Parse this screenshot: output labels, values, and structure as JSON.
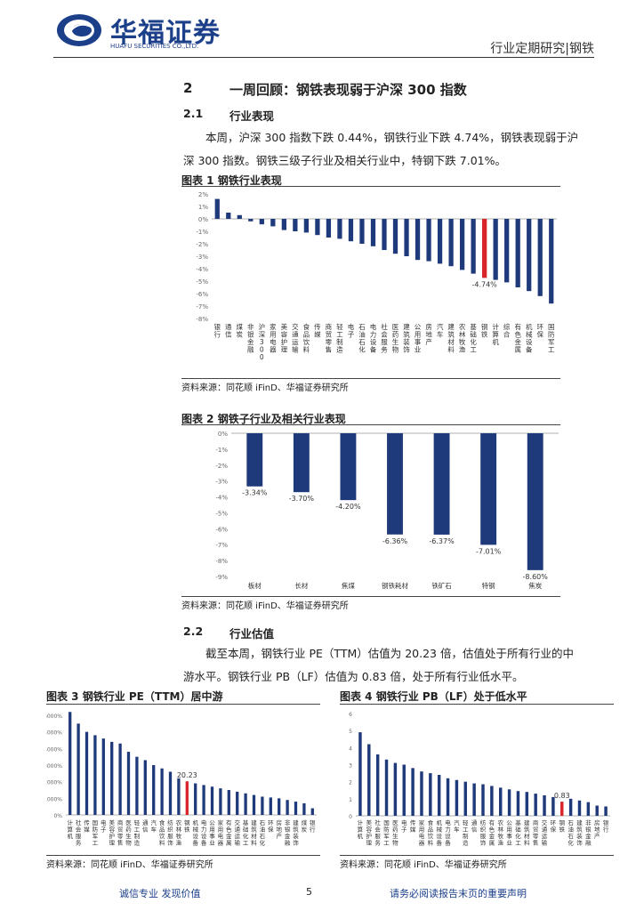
{
  "header": {
    "logo_cn": "华福证券",
    "logo_en": "HUAFU SECURITIES CO.,LTD.",
    "report_type": "行业定期研究|钢铁"
  },
  "section2": {
    "num": "2",
    "title": "一周回顾：钢铁表现弱于沪深 300 指数"
  },
  "section21": {
    "num": "2.1",
    "title": "行业表现",
    "para_line1": "本周，沪深 300 指数下跌 0.44%，钢铁行业下跌 4.74%，钢铁表现弱于沪",
    "para_line2": "深 300 指数。钢铁三级子行业及相关行业中，特钢下跌 7.01%。"
  },
  "fig1": {
    "title": "图表 1 钢铁行业表现",
    "source": "资料来源：同花顺 iFinD、华福证券研究所"
  },
  "fig2": {
    "title": "图表 2 钢铁子行业及相关行业表现",
    "source": "资料来源：同花顺 iFinD、华福证券研究所"
  },
  "section22": {
    "num": "2.2",
    "title": "行业估值",
    "para_line1": "截至本周，钢铁行业 PE（TTM）估值为 20.23 倍，估值处于所有行业的中",
    "para_line2": "游水平。钢铁行业 PB（LF）估值为 0.83 倍，处于所有行业低水平。"
  },
  "fig3": {
    "title": "图表 3 钢铁行业 PE（TTM）居中游",
    "source": "资料来源：同花顺 iFinD、华福证券研究所"
  },
  "fig4": {
    "title": "图表 4 钢铁行业 PB（LF）处于低水平",
    "source": "资料来源：同花顺 iFinD、华福证券研究所"
  },
  "footer": {
    "left": "诚信专业  发现价值",
    "page": "5",
    "right": "请务必阅读报告末页的重要声明"
  },
  "colors": {
    "navy": "#1f3a7a",
    "highlight": "#d9242a"
  },
  "chart_data": [
    {
      "id": "fig1",
      "type": "bar",
      "categories": [
        "银行",
        "通信",
        "煤炭",
        "非银金融",
        "沪深300",
        "家用电器",
        "美容护理",
        "交通运输",
        "食品饮料",
        "传媒",
        "商贸零售",
        "轻工制造",
        "电子",
        "石油石化",
        "电力设备",
        "社会服务",
        "医药生物",
        "建筑装饰",
        "公用事业",
        "房地产",
        "汽车",
        "建筑材料",
        "农林牧渔",
        "基础化工",
        "钢铁",
        "计算机",
        "综合",
        "有色金属",
        "机械设备",
        "环保",
        "国防军工"
      ],
      "values": [
        1.6,
        0.5,
        0.3,
        -0.2,
        -0.44,
        -0.6,
        -0.9,
        -1.0,
        -1.1,
        -1.3,
        -1.5,
        -1.6,
        -1.8,
        -2.0,
        -2.2,
        -2.5,
        -2.8,
        -3.0,
        -3.3,
        -3.4,
        -3.6,
        -3.8,
        -4.1,
        -4.4,
        -4.74,
        -4.9,
        -5.1,
        -5.5,
        -5.8,
        -6.2,
        -6.8
      ],
      "highlight": "钢铁",
      "data_label": "-4.74%",
      "y_ticks": [
        "2%",
        "1%",
        "0%",
        "-1%",
        "-2%",
        "-3%",
        "-4%",
        "-5%",
        "-6%",
        "-7%",
        "-8%"
      ],
      "ylim": [
        -8,
        2
      ]
    },
    {
      "id": "fig2",
      "type": "bar",
      "categories": [
        "板材",
        "长材",
        "焦煤",
        "钢铁耗材",
        "铁矿石",
        "特钢",
        "焦炭"
      ],
      "values": [
        -3.34,
        -3.7,
        -4.2,
        -6.36,
        -6.37,
        -7.01,
        -8.6
      ],
      "data_labels": [
        "-3.34%",
        "-3.70%",
        "-4.20%",
        "-6.36%",
        "-6.37%",
        "-7.01%",
        "-8.60%"
      ],
      "y_ticks": [
        "0%",
        "-1%",
        "-2%",
        "-3%",
        "-4%",
        "-5%",
        "-6%",
        "-7%",
        "-8%",
        "-9%"
      ],
      "ylim": [
        -9,
        0
      ]
    },
    {
      "id": "fig3",
      "type": "bar",
      "categories": [
        "计算机",
        "社会服务",
        "传媒",
        "国防军工",
        "电子",
        "美容护理",
        "商贸零售",
        "医药生物",
        "轻工制造",
        "通信",
        "汽车",
        "食品饮料",
        "纺织服饰",
        "农林牧渔",
        "钢铁",
        "机械设备",
        "电力设备",
        "公用事业",
        "家用电器",
        "有色金属",
        "交通运输",
        "基础化工",
        "建筑材料",
        "石油石化",
        "环保",
        "房地产",
        "非银金融",
        "建筑装饰",
        "煤炭",
        "银行"
      ],
      "values": [
        62,
        55,
        50,
        48,
        46,
        44,
        43,
        38,
        35,
        33,
        30,
        28,
        26,
        22,
        20.23,
        19,
        18,
        17,
        16,
        15,
        14,
        13,
        12,
        11,
        10.5,
        10,
        9,
        8,
        7,
        4
      ],
      "highlight": "钢铁",
      "data_label": "20.23",
      "y_ticks": [
        "6000%",
        "5000%",
        "4000%",
        "3000%",
        "2000%",
        "1000%",
        "0%"
      ],
      "ylim": [
        0,
        60
      ]
    },
    {
      "id": "fig4",
      "type": "bar",
      "categories": [
        "计算机",
        "美容护理",
        "社会服务",
        "国防军工",
        "医药生物",
        "电子",
        "传媒",
        "家用电器",
        "食品饮料",
        "机械设备",
        "电力设备",
        "汽车",
        "轻工制造",
        "通信",
        "纺织服饰",
        "有色金属",
        "农林牧渔",
        "公用事业",
        "基础化工",
        "建筑材料",
        "商贸零售",
        "交通运输",
        "环保",
        "钢铁",
        "石油石化",
        "建筑装饰",
        "非银金融",
        "房地产",
        "银行"
      ],
      "values": [
        4.9,
        4.2,
        3.6,
        3.3,
        3.1,
        3.0,
        2.8,
        2.6,
        2.5,
        2.4,
        2.2,
        2.1,
        2.0,
        1.9,
        1.85,
        1.75,
        1.65,
        1.55,
        1.45,
        1.4,
        1.3,
        1.2,
        1.1,
        0.83,
        1.0,
        0.9,
        0.8,
        0.6,
        0.55
      ],
      "highlight": "钢铁",
      "data_label": "0.83",
      "y_ticks": [
        "6",
        "5",
        "4",
        "3",
        "2",
        "1",
        "0"
      ],
      "ylim": [
        0,
        6
      ]
    }
  ]
}
